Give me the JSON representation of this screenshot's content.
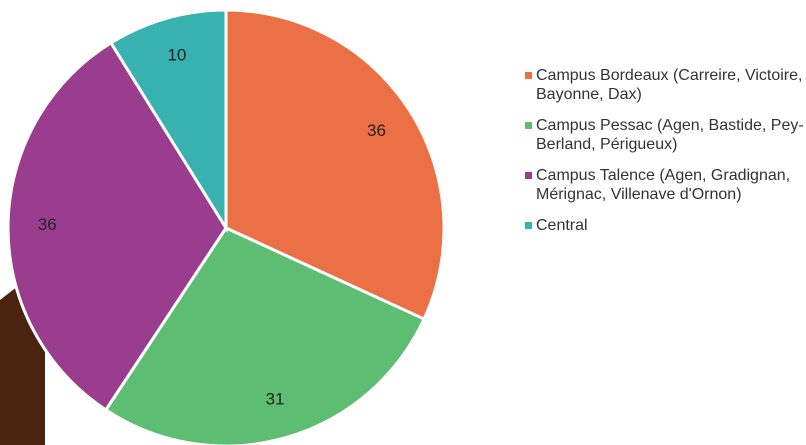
{
  "chart_data": {
    "type": "pie",
    "categories": [
      "Campus Bordeaux (Carreire, Victoire, Bayonne, Dax)",
      "Campus Pessac (Agen, Bastide, Pey-Berland, Périgueux)",
      "Campus Talence (Agen, Gradignan, Mérignac, Villenave d'Ornon)",
      "Central"
    ],
    "values": [
      36,
      31,
      36,
      10
    ],
    "colors": [
      "#ec7046",
      "#5cbd73",
      "#9b3d8f",
      "#38b2b0"
    ],
    "legend": "right"
  }
}
